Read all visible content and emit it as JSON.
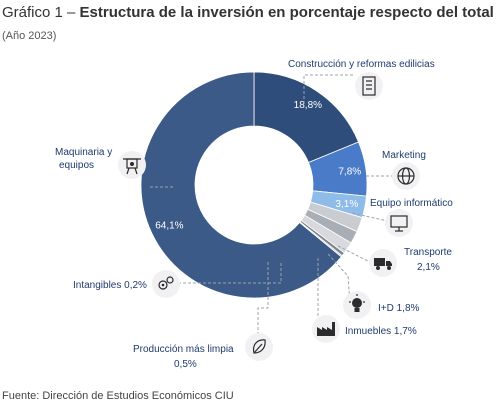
{
  "title_prefix": "Gráfico 1 – ",
  "title_main": "Estructura de la inversión en porcentaje respecto del total",
  "subtitle": "(Año 2023)",
  "source": "Fuente: Dirección de Estudios Económicos CIU",
  "chart_data": {
    "type": "pie",
    "donut": true,
    "title": "Estructura de la inversión en porcentaje respecto del total",
    "subtitle": "(Año 2023)",
    "slices": [
      {
        "label": "Construcción y reformas edilicias",
        "value": 18.8,
        "value_label": "18,8%",
        "color": "#2e4d7a",
        "icon": "building-icon"
      },
      {
        "label": "Marketing",
        "value": 7.8,
        "value_label": "7,8%",
        "color": "#4a7bc8",
        "icon": "globe-icon"
      },
      {
        "label": "Equipo informático",
        "value": 3.1,
        "value_label": "3,1%",
        "color": "#8fbbe8",
        "icon": "monitor-icon"
      },
      {
        "label": "Transporte",
        "value": 2.1,
        "value_label": "2,1%",
        "color": "#c9ccd1",
        "icon": "truck-icon"
      },
      {
        "label": "I+D",
        "value": 1.8,
        "value_label": "1,8%",
        "color": "#a9adb4",
        "icon": "lightbulb-icon"
      },
      {
        "label": "Inmuebles",
        "value": 1.7,
        "value_label": "1,7%",
        "color": "#d7d9dc",
        "icon": "factory-icon"
      },
      {
        "label": "Producción más limpia",
        "value": 0.5,
        "value_label": "0,5%",
        "color": "#7f858d",
        "icon": "leaf-icon"
      },
      {
        "label": "Intangibles",
        "value": 0.2,
        "value_label": "0,2%",
        "color": "#b5b9bf",
        "icon": "gears-icon"
      },
      {
        "label": "Maquinaria y equipos",
        "value": 64.1,
        "value_label": "64,1%",
        "color": "#3c5a88",
        "icon": "machinery-icon"
      }
    ],
    "legend": "none"
  },
  "labels": {
    "construccion": "Construcción y reformas edilicias",
    "marketing": "Marketing",
    "equipo": "Equipo informático",
    "transporte_name": "Transporte",
    "transporte_val": "2,1%",
    "id": "I+D 1,8%",
    "inmuebles": "Inmuebles 1,7%",
    "produccion_name": "Producción más limpia",
    "produccion_val": "0,5%",
    "intangibles": "Intangibles 0,2%",
    "maquinaria_l1": "Maquinaria y",
    "maquinaria_l2": "equipos"
  }
}
